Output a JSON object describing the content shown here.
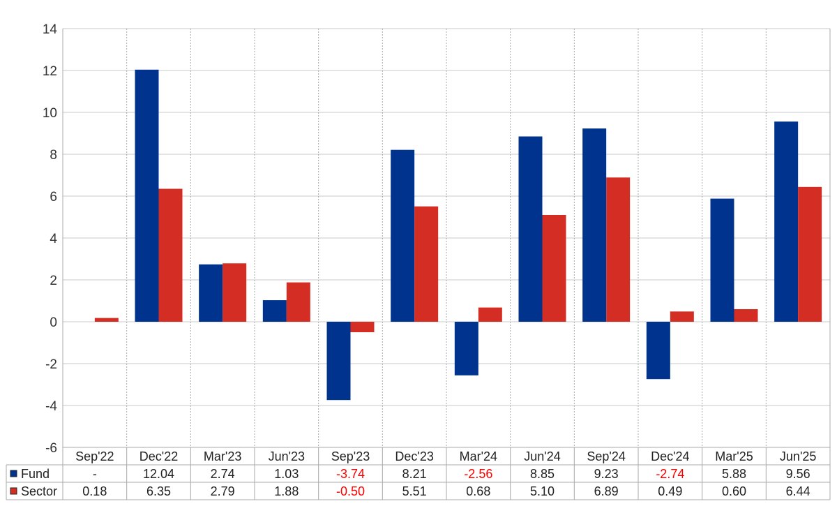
{
  "chart_data": {
    "type": "bar",
    "categories": [
      "Sep'22",
      "Dec'22",
      "Mar'23",
      "Jun'23",
      "Sep'23",
      "Dec'23",
      "Mar'24",
      "Jun'24",
      "Sep'24",
      "Dec'24",
      "Mar'25",
      "Jun'25"
    ],
    "series": [
      {
        "name": "Fund",
        "color": "#00338d",
        "values": [
          null,
          12.04,
          2.74,
          1.03,
          -3.74,
          8.21,
          -2.56,
          8.85,
          9.23,
          -2.74,
          5.88,
          9.56
        ],
        "labels": [
          "-",
          "12.04",
          "2.74",
          "1.03",
          "-3.74",
          "8.21",
          "-2.56",
          "8.85",
          "9.23",
          "-2.74",
          "5.88",
          "9.56"
        ]
      },
      {
        "name": "Sector",
        "color": "#d42e24",
        "values": [
          0.18,
          6.35,
          2.79,
          1.88,
          -0.5,
          5.51,
          0.68,
          5.1,
          6.89,
          0.49,
          0.6,
          6.44
        ],
        "labels": [
          "0.18",
          "6.35",
          "2.79",
          "1.88",
          "-0.50",
          "5.51",
          "0.68",
          "5.10",
          "6.89",
          "0.49",
          "0.60",
          "6.44"
        ]
      }
    ],
    "ylim": [
      -6,
      14
    ],
    "yticks": [
      "-6",
      "-4",
      "-2",
      "0",
      "2",
      "4",
      "6",
      "8",
      "10",
      "12",
      "14"
    ],
    "grid": true,
    "legend": "data-table-left",
    "negative_label_color": "#ff0000",
    "title": "",
    "xlabel": "",
    "ylabel": ""
  }
}
